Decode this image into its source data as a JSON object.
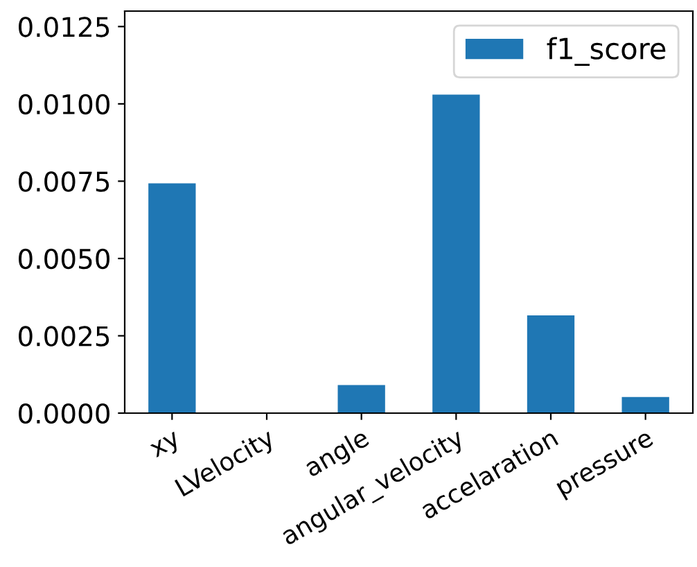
{
  "chart_data": {
    "type": "bar",
    "categories": [
      "xy",
      "LVelocity",
      "angle",
      "angular_velocity",
      "accelaration",
      "pressure"
    ],
    "series": [
      {
        "name": "f1_score",
        "color": "#1f77b4",
        "values": [
          0.00743,
          0,
          0.00091,
          0.0103,
          0.00316,
          0.00052
        ]
      }
    ],
    "ylim": [
      0,
      0.013
    ],
    "yticks": [
      {
        "value": 0,
        "label": "0.0000"
      },
      {
        "value": 0.0025,
        "label": "0.0025"
      },
      {
        "value": 0.005,
        "label": "0.0050"
      },
      {
        "value": 0.0075,
        "label": "0.0075"
      },
      {
        "value": 0.01,
        "label": "0.0100"
      },
      {
        "value": 0.0125,
        "label": "0.0125"
      }
    ],
    "legend": "top right"
  }
}
